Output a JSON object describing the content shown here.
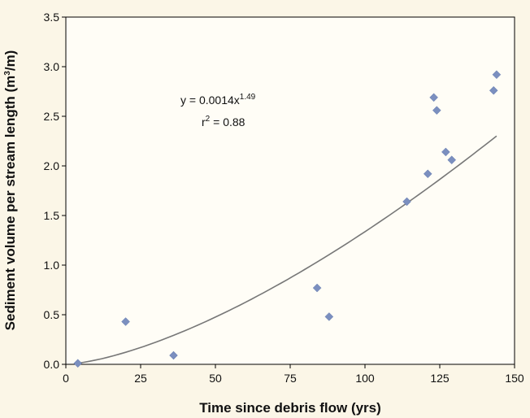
{
  "chart_data": {
    "type": "scatter",
    "xlabel": "Time since debris flow (yrs)",
    "ylabel_parts": {
      "before": "Sediment volume per stream length (m",
      "sup": "3",
      "after": "/m)"
    },
    "xlim": [
      0,
      150
    ],
    "ylim": [
      0,
      3.5
    ],
    "x_ticks": [
      "0",
      "25",
      "50",
      "75",
      "100",
      "125",
      "150"
    ],
    "y_ticks": [
      "0.0",
      "0.5",
      "1.0",
      "1.5",
      "2.0",
      "2.5",
      "3.0",
      "3.5"
    ],
    "grid": false,
    "legend": "none",
    "marker_color": "#7b8fbf",
    "trend_color": "#777777",
    "points": [
      {
        "x": 4,
        "y": 0.01
      },
      {
        "x": 20,
        "y": 0.43
      },
      {
        "x": 36,
        "y": 0.09
      },
      {
        "x": 84,
        "y": 0.77
      },
      {
        "x": 88,
        "y": 0.48
      },
      {
        "x": 114,
        "y": 1.64
      },
      {
        "x": 121,
        "y": 1.92
      },
      {
        "x": 123,
        "y": 2.69
      },
      {
        "x": 124,
        "y": 2.56
      },
      {
        "x": 127,
        "y": 2.14
      },
      {
        "x": 129,
        "y": 2.06
      },
      {
        "x": 143,
        "y": 2.76
      },
      {
        "x": 144,
        "y": 2.92
      }
    ],
    "trendline": {
      "type": "power",
      "a": 0.0014,
      "b": 1.49,
      "x_range": [
        4,
        144
      ]
    },
    "annotation": {
      "equation_base": "y = 0.0014x",
      "equation_exp": "1.49",
      "r2_prefix": "r",
      "r2_sup": "2",
      "r2_value": " = 0.88"
    }
  }
}
